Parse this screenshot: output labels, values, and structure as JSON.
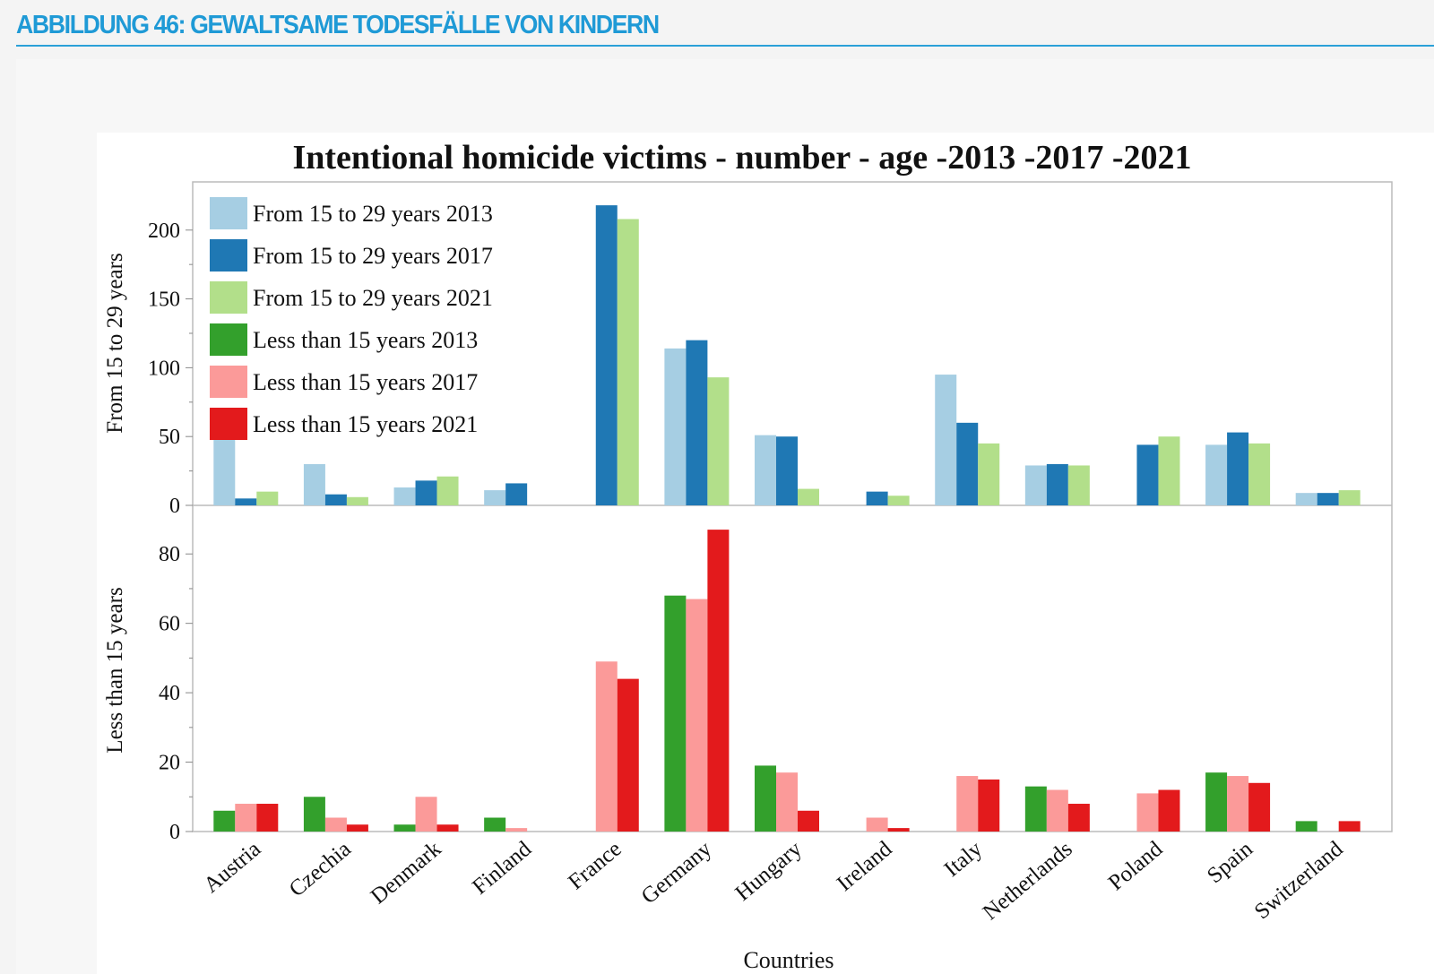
{
  "header": {
    "title": "ABBILDUNG 46: GEWALTSAME TODESFÄLLE VON KINDERN",
    "accent": "#1f9ad6"
  },
  "chart_data": {
    "type": "bar",
    "title": "Intentional homicide victims - number - age -2013 -2017 -2021",
    "xlabel": "Countries",
    "categories": [
      "Austria",
      "Czechia",
      "Denmark",
      "Finland",
      "France",
      "Germany",
      "Hungary",
      "Ireland",
      "Italy",
      "Netherlands",
      "Poland",
      "Spain",
      "Switzerland"
    ],
    "legend_placement": "top-left",
    "panels": [
      {
        "ylabel": "From 15 to 29 years",
        "ylim": [
          0,
          235
        ],
        "yticks": [
          0,
          50,
          100,
          150,
          200
        ],
        "series": [
          {
            "name": "From 15 to 29 years 2013",
            "color": "#a6cee3",
            "values": [
              51,
              30,
              13,
              11,
              null,
              114,
              51,
              null,
              95,
              29,
              null,
              44,
              9
            ]
          },
          {
            "name": "From 15 to 29 years 2017",
            "color": "#1f78b4",
            "values": [
              5,
              8,
              18,
              16,
              218,
              120,
              50,
              10,
              60,
              30,
              44,
              53,
              9
            ]
          },
          {
            "name": "From 15 to 29 years 2021",
            "color": "#b2df8a",
            "values": [
              10,
              6,
              21,
              null,
              208,
              93,
              12,
              7,
              45,
              29,
              50,
              45,
              11
            ]
          }
        ]
      },
      {
        "ylabel": "Less than 15 years",
        "ylim": [
          0,
          94
        ],
        "yticks": [
          0,
          20,
          40,
          60,
          80
        ],
        "series": [
          {
            "name": "Less than 15 years 2013",
            "color": "#33a02c",
            "values": [
              6,
              10,
              2,
              4,
              null,
              68,
              19,
              null,
              null,
              13,
              null,
              17,
              3
            ]
          },
          {
            "name": "Less than 15 years 2017",
            "color": "#fb9a99",
            "values": [
              8,
              4,
              10,
              1,
              49,
              67,
              17,
              4,
              16,
              12,
              11,
              16,
              null
            ]
          },
          {
            "name": "Less than 15 years 2021",
            "color": "#e31a1c",
            "values": [
              8,
              2,
              2,
              null,
              44,
              87,
              6,
              1,
              15,
              8,
              12,
              14,
              3
            ]
          }
        ]
      }
    ]
  }
}
